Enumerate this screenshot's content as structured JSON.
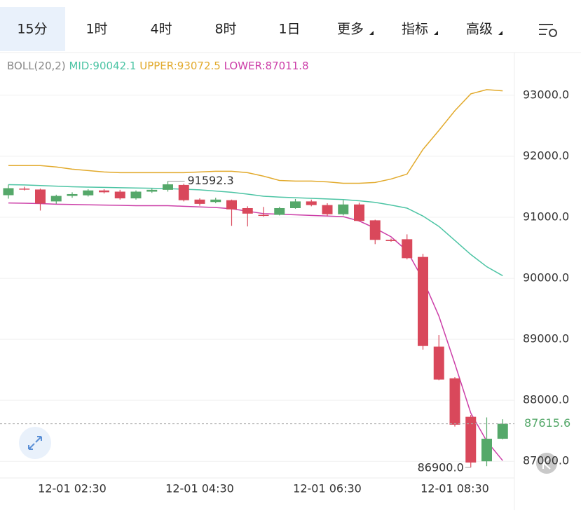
{
  "tabs": [
    "15分",
    "1时",
    "4时",
    "8时",
    "1日",
    "更多",
    "指标",
    "高级"
  ],
  "chart_data": {
    "type": "candlestick",
    "indicator": "BOLL(20,2)",
    "categories": [
      null,
      null,
      null,
      null,
      "12-01 02:30",
      null,
      null,
      null,
      null,
      null,
      null,
      null,
      "12-01 04:30",
      null,
      null,
      null,
      null,
      null,
      null,
      null,
      "12-01 06:30",
      null,
      null,
      null,
      null,
      null,
      null,
      null,
      "12-01 08:30",
      null,
      null,
      null
    ],
    "open": [
      91362,
      91470,
      91455,
      91260,
      91350,
      91360,
      91440,
      91420,
      91310,
      91420,
      91450,
      91530,
      91290,
      91250,
      91280,
      91150,
      91040,
      91040,
      91150,
      91260,
      91200,
      91050,
      91210,
      90950,
      90630,
      90640,
      90350,
      88880,
      88360,
      87730,
      87000,
      87370
    ],
    "high": [
      91535,
      91500,
      91470,
      91370,
      91410,
      91460,
      91460,
      91450,
      91440,
      91470,
      91592.3,
      91550,
      91310,
      91320,
      91290,
      91180,
      91170,
      91170,
      91300,
      91290,
      91230,
      91280,
      91240,
      90960,
      90650,
      90720,
      90400,
      89070,
      88380,
      87760,
      87720,
      87690
    ],
    "low": [
      91305,
      91440,
      91110,
      91220,
      91320,
      91340,
      91390,
      91290,
      91290,
      91400,
      91420,
      91260,
      91190,
      91230,
      90860,
      90850,
      91010,
      91030,
      91140,
      91180,
      91020,
      91030,
      90930,
      90560,
      90600,
      90310,
      88830,
      88330,
      87570,
      86900,
      86920,
      87360
    ],
    "close": [
      91477,
      91460,
      91225,
      91350,
      91380,
      91440,
      91410,
      91310,
      91420,
      91450,
      91540,
      91280,
      91220,
      91290,
      91130,
      91060,
      91030,
      91150,
      91260,
      91200,
      91050,
      91210,
      90940,
      90630,
      90610,
      90330,
      88890,
      88340,
      87600,
      86980,
      87370,
      87615.6
    ],
    "up_color": "#55a86a",
    "down_color": "#d9485b",
    "series": [
      {
        "name": "MID:90042.1",
        "color": "#4cc4a4",
        "values": [
          91535,
          91530,
          91520,
          91510,
          91500,
          91495,
          91490,
          91485,
          91480,
          91475,
          91470,
          91460,
          91450,
          91430,
          91410,
          91380,
          91345,
          91330,
          91320,
          91310,
          91300,
          91290,
          91270,
          91245,
          91200,
          91150,
          91020,
          90850,
          90620,
          90390,
          90190,
          90042.1
        ]
      },
      {
        "name": "UPPER:93072.5",
        "color": "#e2aa2c",
        "values": [
          91847,
          91847,
          91847,
          91824,
          91789,
          91766,
          91743,
          91731,
          91731,
          91731,
          91731,
          91731,
          91743,
          91754,
          91754,
          91731,
          91674,
          91604,
          91593,
          91593,
          91581,
          91558,
          91558,
          91570,
          91627,
          91708,
          92112,
          92423,
          92746,
          93023,
          93092,
          93072.5
        ]
      },
      {
        "name": "LOWER:87011.8",
        "color": "#cc3fa8",
        "values": [
          91235,
          91230,
          91225,
          91215,
          91210,
          91205,
          91200,
          91195,
          91190,
          91190,
          91190,
          91180,
          91170,
          91160,
          91140,
          91100,
          91060,
          91050,
          91040,
          91030,
          91020,
          91010,
          90940,
          90820,
          90680,
          90450,
          89980,
          89380,
          88600,
          87790,
          87330,
          87011.8
        ]
      }
    ],
    "extreme_labels": {
      "high": "91592.3",
      "low": "86900.0"
    },
    "ylim": [
      86750,
      93700
    ],
    "yticks": [
      {
        "value": 87000,
        "label": "87000.0"
      },
      {
        "value": 88000,
        "label": "88000.0"
      },
      {
        "value": 89000,
        "label": "89000.0"
      },
      {
        "value": 90000,
        "label": "90000.0"
      },
      {
        "value": 91000,
        "label": "91000.0"
      },
      {
        "value": 92000,
        "label": "92000.0"
      },
      {
        "value": 93000,
        "label": "93000.0"
      }
    ],
    "grid": true
  }
}
